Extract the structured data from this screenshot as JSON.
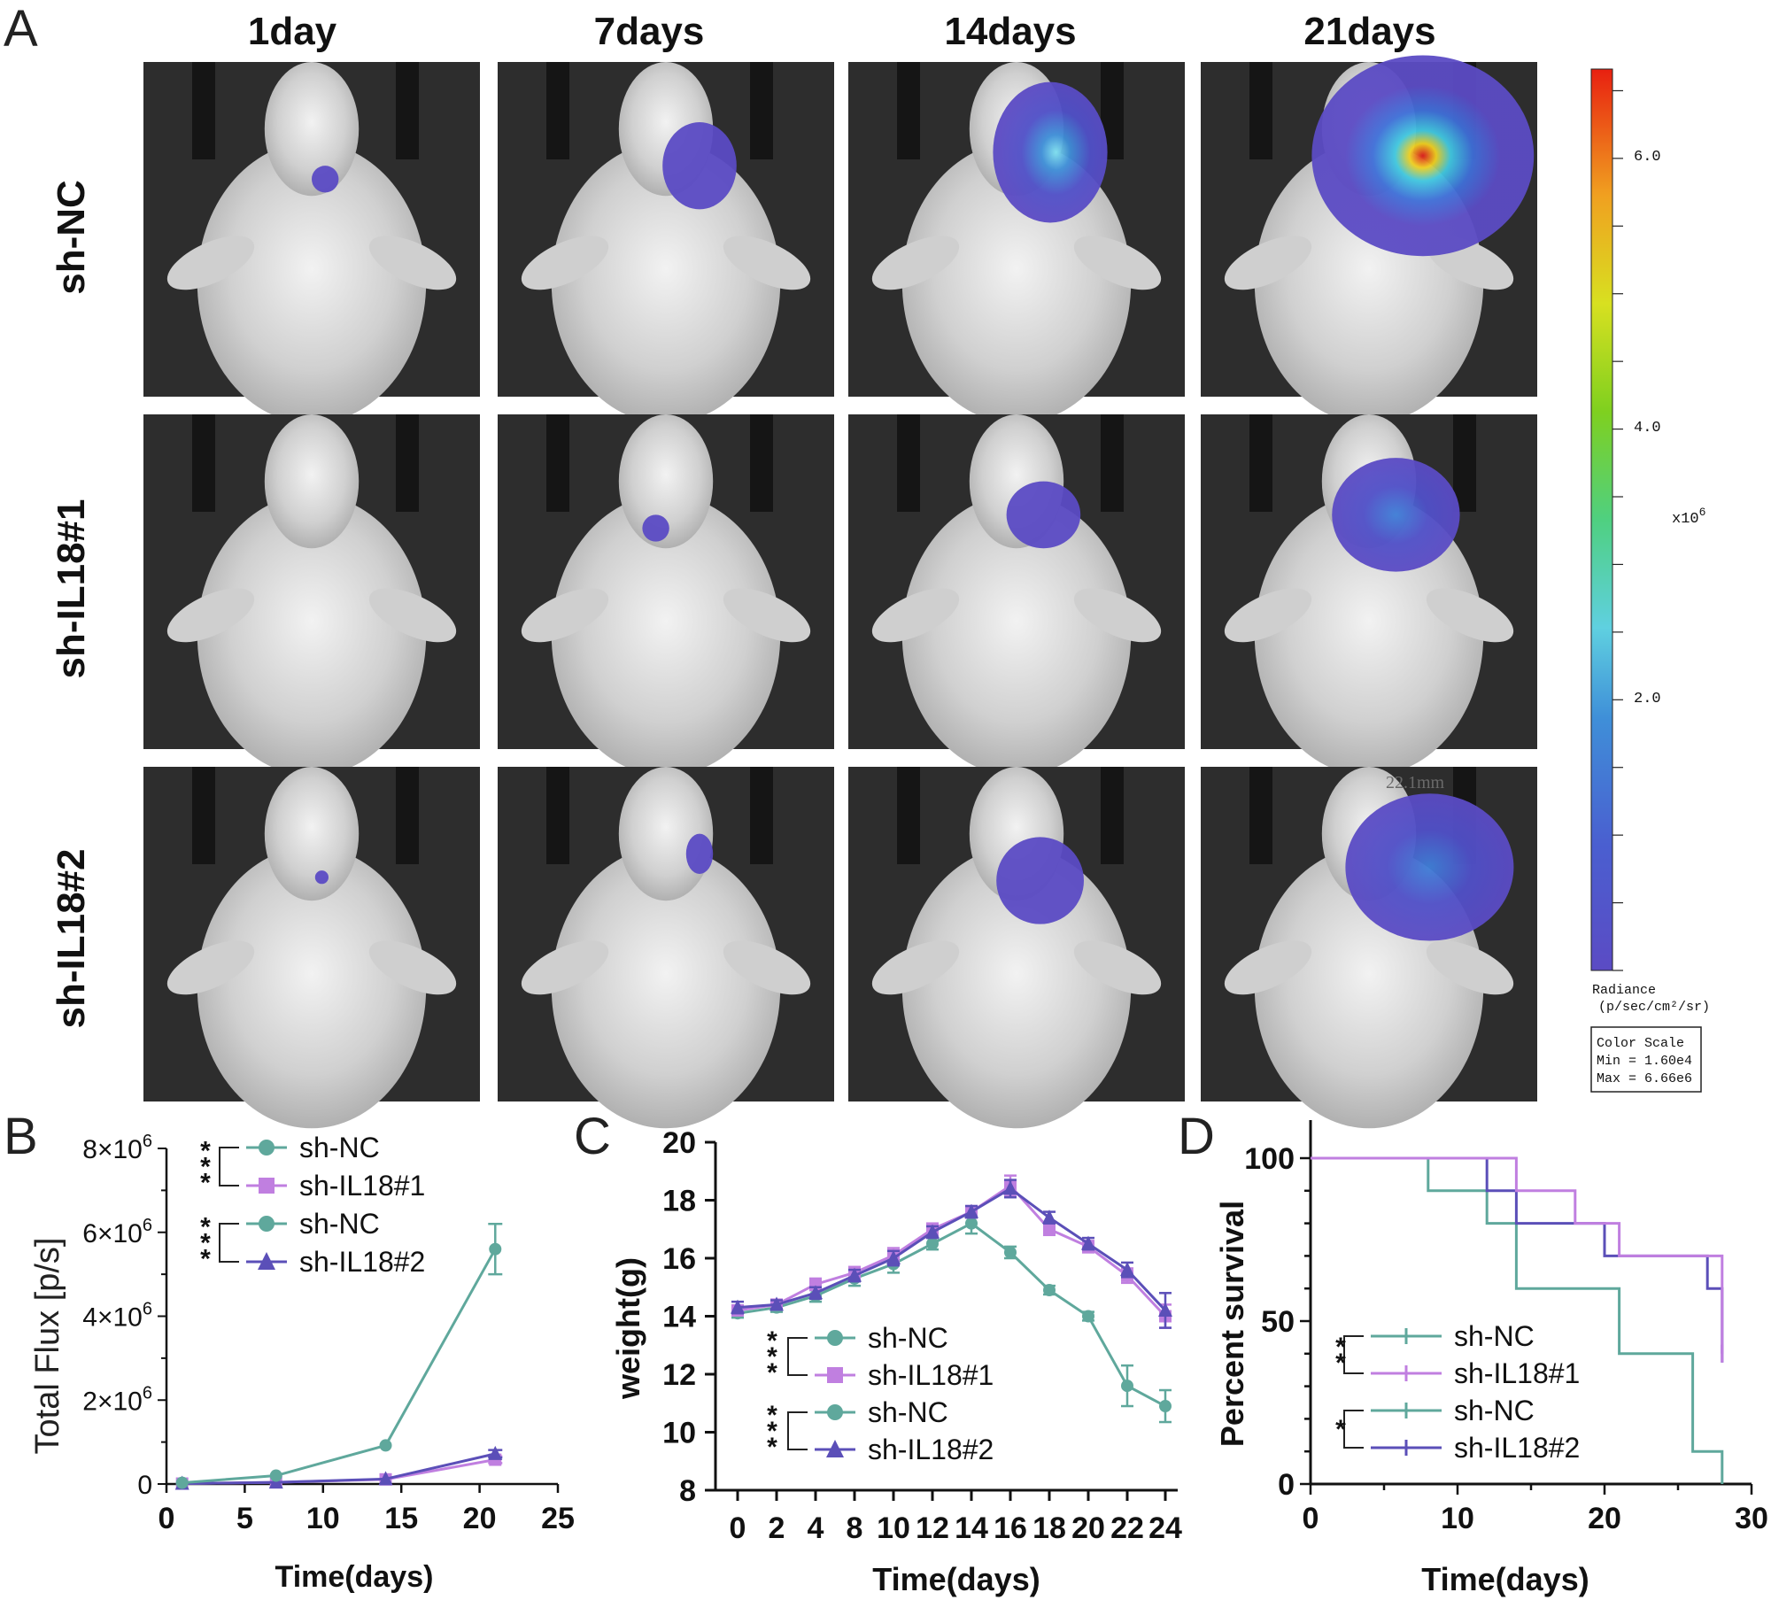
{
  "figure": {
    "panel_labels": {
      "a": "A",
      "b": "B",
      "c": "C",
      "d": "D"
    },
    "day_labels": [
      "1day",
      "7days",
      "14days",
      "21days"
    ],
    "row_labels": [
      "sh-NC",
      "sh-IL18#1",
      "sh-IL18#2"
    ],
    "image_watermark": "22.1mm"
  },
  "colorbar": {
    "ticks": [
      "6.0",
      "4.0",
      "2.0"
    ],
    "multiplier": "x10",
    "exponent": "6",
    "title": "Radiance",
    "units": "(p/sec/cm²/sr)",
    "scale_title": "Color Scale",
    "min_text": "Min = 1.60e4",
    "max_text": "Max = 6.66e6"
  },
  "colors": {
    "nc": "#5fa89c",
    "il18_1": "#c07fe0",
    "il18_2": "#5b4fb8",
    "axis": "#111111"
  },
  "chart_data": [
    {
      "panel": "B",
      "type": "line",
      "xlabel": "Time(days)",
      "ylabel": "Total Flux [p/s]",
      "xlim": [
        0,
        25
      ],
      "ylim": [
        0,
        8000000
      ],
      "xticks": [
        "0",
        "5",
        "10",
        "15",
        "20",
        "25"
      ],
      "yticks": [
        {
          "base": "0",
          "exp": ""
        },
        {
          "base": "2×10",
          "exp": "6"
        },
        {
          "base": "4×10",
          "exp": "6"
        },
        {
          "base": "6×10",
          "exp": "6"
        },
        {
          "base": "8×10",
          "exp": "6"
        }
      ],
      "x": [
        1,
        7,
        14,
        21
      ],
      "series": [
        {
          "name": "sh-NC",
          "values": [
            30000,
            200000,
            920000,
            5600000
          ],
          "err": [
            10000,
            40000,
            60000,
            600000
          ]
        },
        {
          "name": "sh-IL18#1",
          "values": [
            10000,
            40000,
            110000,
            580000
          ],
          "err": [
            5000,
            10000,
            20000,
            80000
          ]
        },
        {
          "name": "sh-IL18#2",
          "values": [
            10000,
            40000,
            120000,
            720000
          ],
          "err": [
            5000,
            10000,
            20000,
            90000
          ]
        }
      ],
      "legend": [
        "sh-NC",
        "sh-IL18#1",
        "sh-NC",
        "sh-IL18#2"
      ],
      "significance": [
        "***",
        "***"
      ]
    },
    {
      "panel": "C",
      "type": "line",
      "xlabel": "Time(days)",
      "ylabel": "weight(g)",
      "ylim": [
        8,
        20
      ],
      "xticks": [
        "0",
        "2",
        "4",
        "8",
        "10",
        "12",
        "14",
        "16",
        "18",
        "20",
        "22",
        "24"
      ],
      "yticks": [
        "8",
        "10",
        "12",
        "14",
        "16",
        "18",
        "20"
      ],
      "x": [
        0,
        2,
        4,
        8,
        10,
        12,
        14,
        16,
        18,
        20,
        22,
        24
      ],
      "series": [
        {
          "name": "sh-NC",
          "values": [
            14.1,
            14.3,
            14.7,
            15.3,
            15.8,
            16.5,
            17.2,
            16.2,
            14.9,
            14.0,
            11.6,
            10.9
          ],
          "err": [
            0.15,
            0.15,
            0.2,
            0.25,
            0.3,
            0.2,
            0.35,
            0.2,
            0.15,
            0.15,
            0.7,
            0.55
          ]
        },
        {
          "name": "sh-IL18#1",
          "values": [
            14.2,
            14.4,
            15.1,
            15.5,
            16.1,
            17.0,
            17.6,
            18.5,
            17.0,
            16.4,
            15.4,
            14.0
          ],
          "err": [
            0.15,
            0.15,
            0.2,
            0.2,
            0.25,
            0.2,
            0.2,
            0.35,
            0.2,
            0.2,
            0.25,
            0.4
          ]
        },
        {
          "name": "sh-IL18#2",
          "values": [
            14.3,
            14.4,
            14.8,
            15.4,
            16.0,
            16.9,
            17.6,
            18.4,
            17.4,
            16.5,
            15.6,
            14.2
          ],
          "err": [
            0.2,
            0.15,
            0.2,
            0.2,
            0.25,
            0.2,
            0.2,
            0.3,
            0.2,
            0.2,
            0.25,
            0.6
          ]
        }
      ],
      "legend": [
        "sh-NC",
        "sh-IL18#1",
        "sh-NC",
        "sh-IL18#2"
      ],
      "significance": [
        "***",
        "***"
      ]
    },
    {
      "panel": "D",
      "type": "line",
      "xlabel": "Time(days)",
      "ylabel": "Percent survival",
      "xlim": [
        0,
        30
      ],
      "ylim": [
        0,
        100
      ],
      "xticks": [
        "0",
        "10",
        "20",
        "30"
      ],
      "yticks": [
        "0",
        "50",
        "100"
      ],
      "series": [
        {
          "name": "sh-NC",
          "steps": [
            [
              0,
              100
            ],
            [
              8,
              90
            ],
            [
              12,
              80
            ],
            [
              14,
              60
            ],
            [
              21,
              40
            ],
            [
              26,
              10
            ],
            [
              28,
              0
            ]
          ]
        },
        {
          "name": "sh-IL18#1",
          "steps": [
            [
              0,
              100
            ],
            [
              14,
              90
            ],
            [
              18,
              80
            ],
            [
              21,
              70
            ],
            [
              28,
              40
            ]
          ]
        },
        {
          "name": "sh-IL18#2",
          "steps": [
            [
              0,
              100
            ],
            [
              12,
              90
            ],
            [
              14,
              80
            ],
            [
              20,
              70
            ],
            [
              27,
              60
            ],
            [
              28,
              40
            ]
          ]
        }
      ],
      "legend": [
        "sh-NC",
        "sh-IL18#1",
        "sh-NC",
        "sh-IL18#2"
      ],
      "significance": [
        "**",
        "*"
      ]
    }
  ]
}
